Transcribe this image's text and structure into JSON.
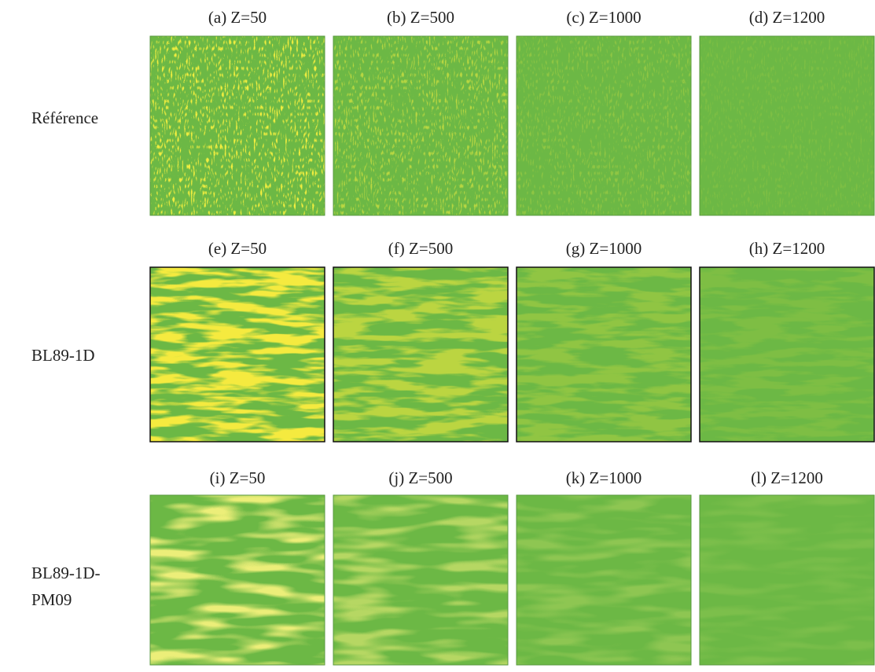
{
  "rows": [
    {
      "label": [
        "Référence"
      ],
      "panels": [
        "(a) Z=50",
        "(b) Z=500",
        "(c) Z=1000",
        "(d) Z=1200"
      ]
    },
    {
      "label": [
        "BL89-1D"
      ],
      "panels": [
        "(e) Z=50",
        "(f) Z=500",
        "(g) Z=1000",
        "(h) Z=1200"
      ]
    },
    {
      "label": [
        "BL89-1D-",
        "PM09"
      ],
      "panels": [
        "(i) Z=50",
        "(j) Z=500",
        "(k) Z=1000",
        "(l) Z=1200"
      ]
    }
  ]
}
